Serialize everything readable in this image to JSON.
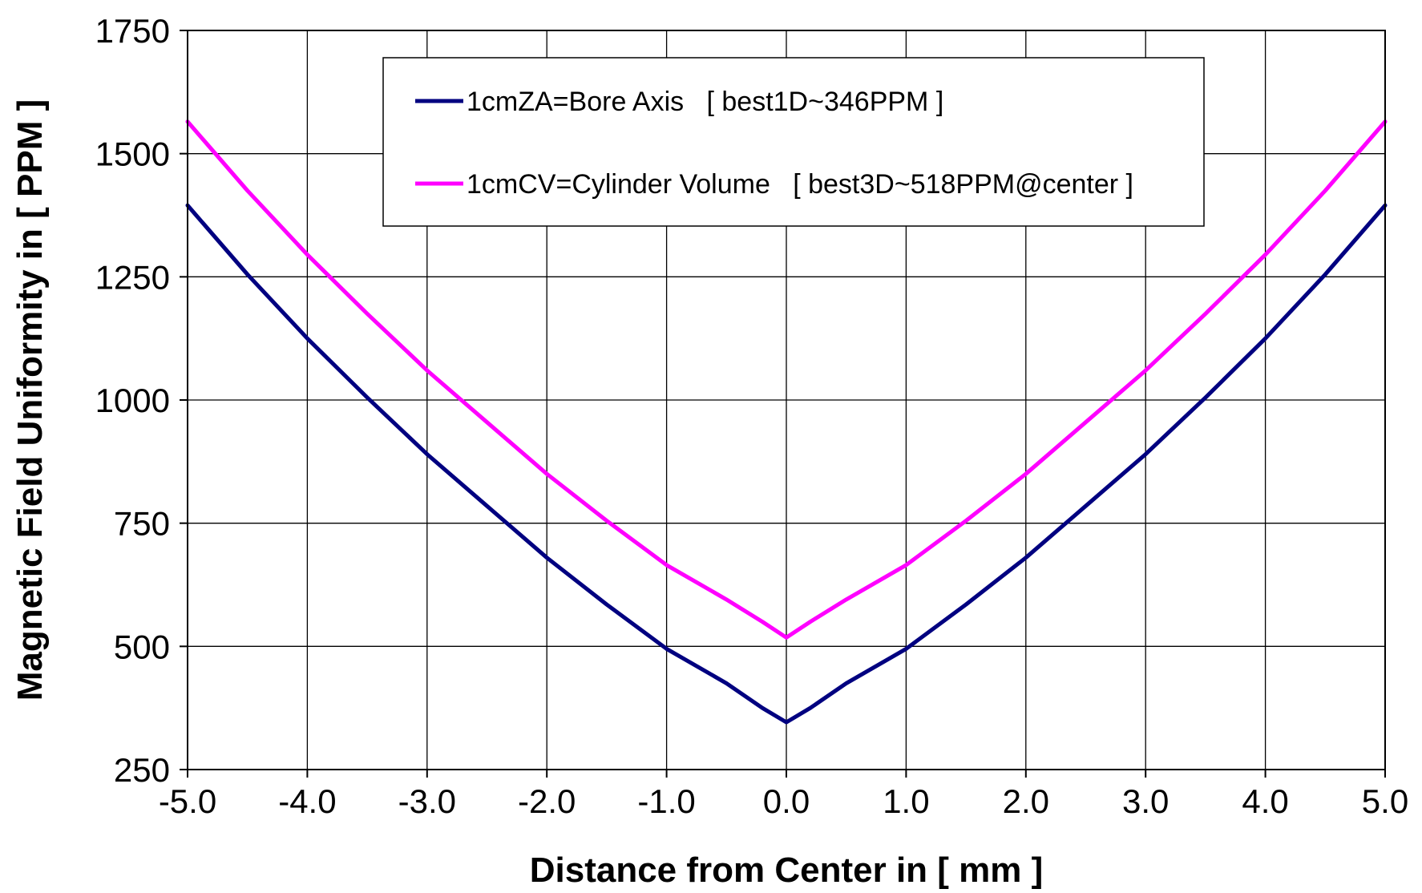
{
  "chart_data": {
    "type": "line",
    "title": "",
    "xlabel": "Distance from Center in [ mm ]",
    "ylabel": "Magnetic Field Uniformity in [ PPM ]",
    "xlim": [
      -5.0,
      5.0
    ],
    "ylim": [
      250,
      1750
    ],
    "x_ticks": [
      -5.0,
      -4.0,
      -3.0,
      -2.0,
      -1.0,
      0.0,
      1.0,
      2.0,
      3.0,
      4.0,
      5.0
    ],
    "x_tick_labels": [
      "-5.0",
      "-4.0",
      "-3.0",
      "-2.0",
      "-1.0",
      "0.0",
      "1.0",
      "2.0",
      "3.0",
      "4.0",
      "5.0"
    ],
    "y_ticks": [
      250,
      500,
      750,
      1000,
      1250,
      1500,
      1750
    ],
    "y_tick_labels": [
      "250",
      "500",
      "750",
      "1000",
      "1250",
      "1500",
      "1750"
    ],
    "grid": true,
    "legend_position": "top-center",
    "series": [
      {
        "name": "1cmZA=Bore Axis   [ best1D~346PPM ]",
        "color": "#000080",
        "x": [
          -5.0,
          -4.5,
          -4.0,
          -3.5,
          -3.0,
          -2.5,
          -2.0,
          -1.5,
          -1.0,
          -0.5,
          -0.2,
          0.0,
          0.2,
          0.5,
          1.0,
          1.5,
          2.0,
          2.5,
          3.0,
          3.5,
          4.0,
          4.5,
          5.0
        ],
        "y": [
          1395,
          1255,
          1125,
          1005,
          890,
          785,
          680,
          585,
          495,
          425,
          375,
          346,
          375,
          425,
          495,
          585,
          680,
          785,
          890,
          1005,
          1125,
          1255,
          1395
        ]
      },
      {
        "name": "1cmCV=Cylinder Volume   [ best3D~518PPM@center ]",
        "color": "#ff00ff",
        "x": [
          -5.0,
          -4.5,
          -4.0,
          -3.5,
          -3.0,
          -2.5,
          -2.0,
          -1.5,
          -1.0,
          -0.5,
          -0.2,
          0.0,
          0.2,
          0.5,
          1.0,
          1.5,
          2.0,
          2.5,
          3.0,
          3.5,
          4.0,
          4.5,
          5.0
        ],
        "y": [
          1565,
          1425,
          1295,
          1175,
          1060,
          955,
          850,
          755,
          665,
          595,
          550,
          518,
          550,
          595,
          665,
          755,
          850,
          955,
          1060,
          1175,
          1295,
          1425,
          1565
        ]
      }
    ]
  }
}
